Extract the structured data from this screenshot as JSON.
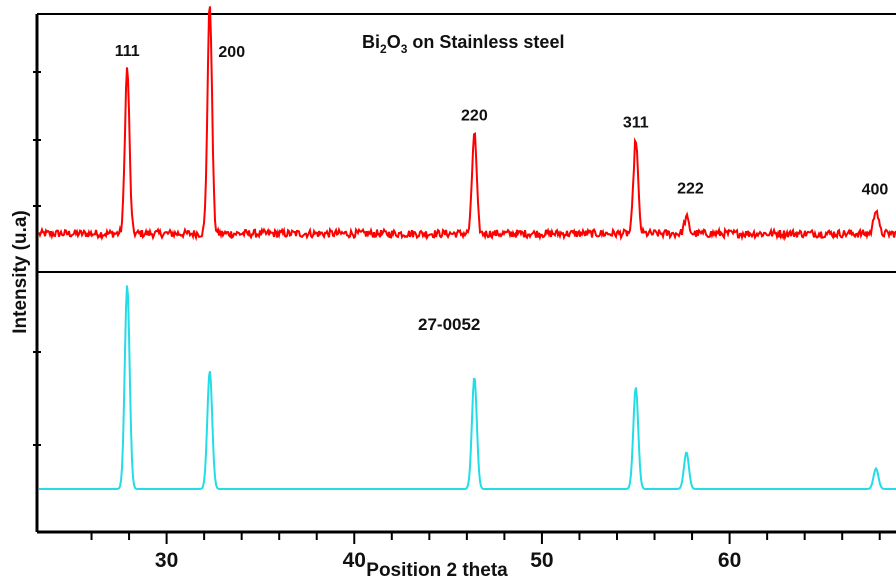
{
  "chart_data": {
    "type": "line",
    "title_main": "Bi",
    "title_sub1": "2",
    "title_mid": "O",
    "title_sub2": "3",
    "title_rest": " on Stainless steel",
    "xlabel": "Position 2 theta",
    "ylabel": "Intensity (u.a)",
    "xlim": [
      24,
      69
    ],
    "x_ticks": [
      30,
      40,
      50,
      60
    ],
    "x_tick_labels": [
      "30",
      "40",
      "50",
      "60"
    ],
    "grid": false,
    "panels": [
      {
        "name": "Bi2O3 on Stainless steel",
        "color": "#ff0000",
        "baseline": 0.08,
        "noise": true,
        "peaks": [
          {
            "x": 27.9,
            "h": 0.72,
            "label": "111"
          },
          {
            "x": 32.3,
            "h": 1.0,
            "label": "200"
          },
          {
            "x": 46.4,
            "h": 0.44,
            "label": "220"
          },
          {
            "x": 55.0,
            "h": 0.41,
            "label": "311"
          },
          {
            "x": 57.7,
            "h": 0.07,
            "label": "222"
          },
          {
            "x": 67.8,
            "h": 0.11,
            "label": "400"
          }
        ]
      },
      {
        "name": "27-0052",
        "color": "#22dde6",
        "baseline": 0.0,
        "noise": false,
        "peaks": [
          {
            "x": 27.9,
            "h": 1.0
          },
          {
            "x": 32.3,
            "h": 0.58
          },
          {
            "x": 46.4,
            "h": 0.55
          },
          {
            "x": 55.0,
            "h": 0.5
          },
          {
            "x": 57.7,
            "h": 0.18
          },
          {
            "x": 67.8,
            "h": 0.1
          }
        ]
      }
    ]
  }
}
